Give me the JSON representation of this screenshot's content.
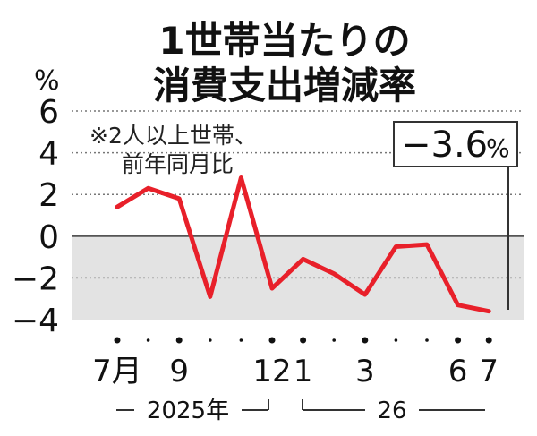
{
  "chart_data": {
    "type": "line",
    "title": [
      "1世帯当たりの",
      "消費支出増減率"
    ],
    "ylabel": "%",
    "ylim": [
      -4,
      6
    ],
    "yticks": [
      6,
      4,
      2,
      0,
      -2,
      -4
    ],
    "ytick_labels": [
      "6",
      "4",
      "2",
      "0",
      "−2",
      "−4"
    ],
    "x": [
      "2025-07",
      "2025-08",
      "2025-09",
      "2025-10",
      "2025-11",
      "2025-12",
      "2026-01",
      "2026-02",
      "2026-03",
      "2026-04",
      "2026-05",
      "2026-06",
      "2026-07"
    ],
    "values": [
      1.4,
      2.3,
      1.8,
      -2.9,
      2.8,
      -2.5,
      -1.1,
      -1.8,
      -2.8,
      -0.5,
      -0.4,
      -3.3,
      -3.6
    ],
    "xtick_labels": [
      "7月",
      "",
      "9",
      "",
      "",
      "12",
      "1",
      "",
      "3",
      "",
      "",
      "6",
      "7"
    ],
    "year_labels": [
      "2025年",
      "26"
    ],
    "note": [
      "※2人以上世帯、",
      "前年同月比"
    ],
    "callout": {
      "value": "−3.6",
      "unit": "%"
    },
    "line_color": "#e8202a",
    "negative_band_color": "#e3e3e3",
    "grid": "dotted"
  }
}
